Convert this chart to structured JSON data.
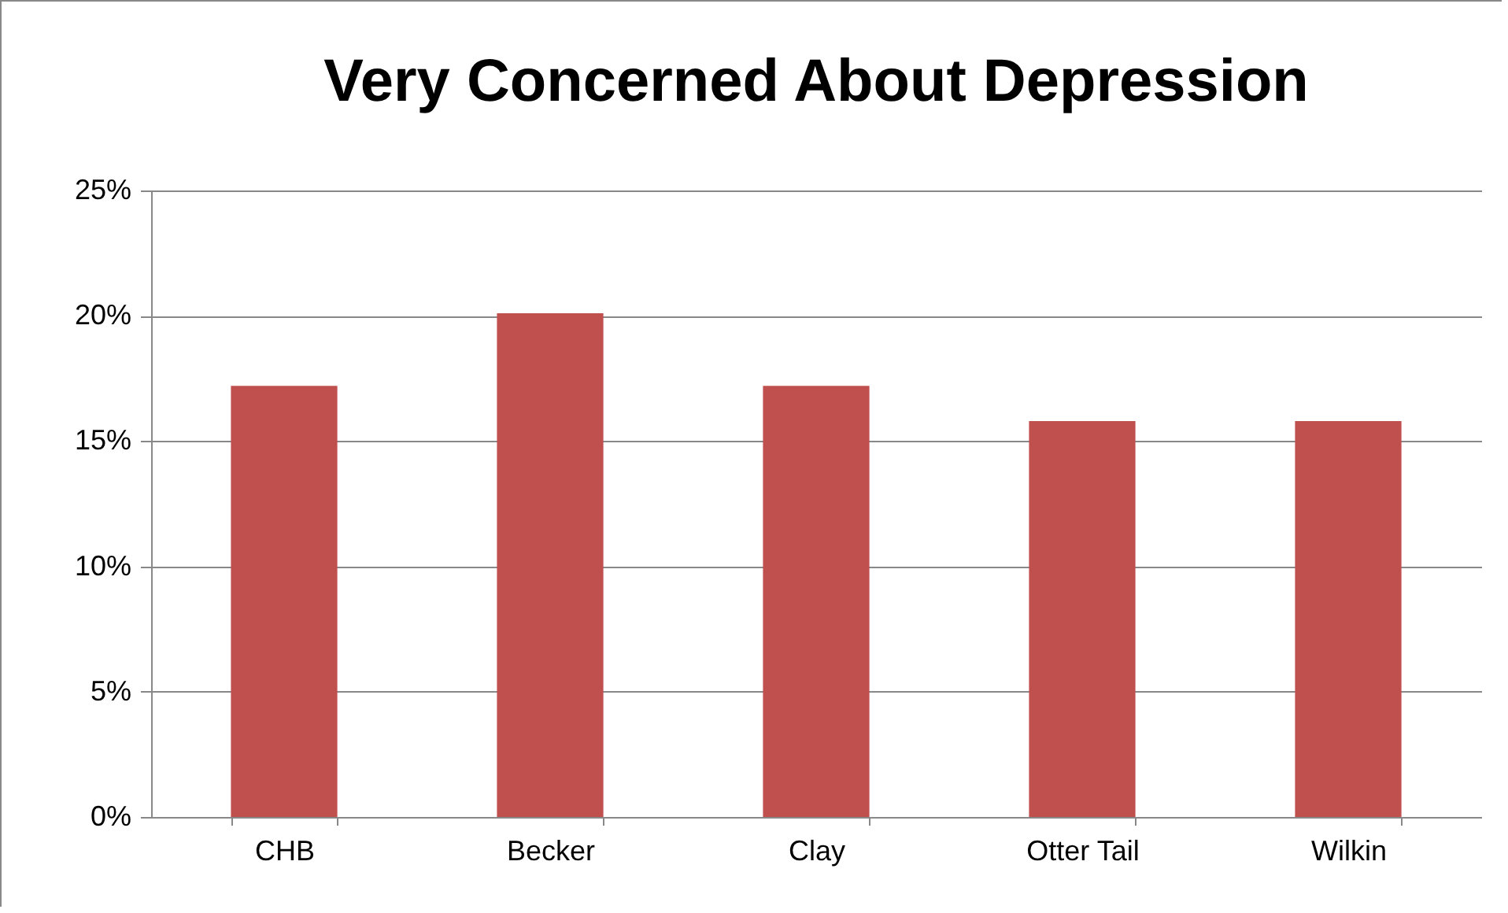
{
  "chart_data": {
    "type": "bar",
    "title": "Very Concerned About Depression",
    "categories": [
      "CHB",
      "Becker",
      "Clay",
      "Otter Tail",
      "Wilkin"
    ],
    "values": [
      17.2,
      20.1,
      17.2,
      15.8,
      15.8
    ],
    "color": "#c0504d",
    "ylim": [
      0,
      25
    ],
    "yticks": [
      {
        "value": 0,
        "label": "0%"
      },
      {
        "value": 5,
        "label": "5%"
      },
      {
        "value": 10,
        "label": "10%"
      },
      {
        "value": 15,
        "label": "15%"
      },
      {
        "value": 20,
        "label": "20%"
      },
      {
        "value": 25,
        "label": "25%"
      }
    ],
    "grid": "y"
  }
}
